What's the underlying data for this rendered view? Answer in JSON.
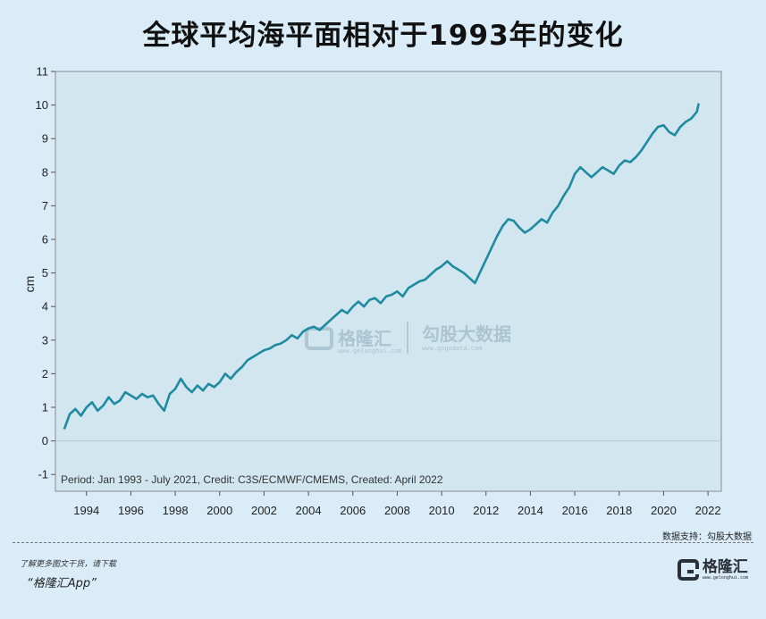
{
  "title": "全球平均海平面相对于1993年的变化",
  "data_support": "数据支持：勾股大数据",
  "footer": {
    "line1": "了解更多图文干货，请下载",
    "line2": "“格隆汇App”"
  },
  "brand": {
    "name": "格隆汇",
    "url": "www.gelonghui.com"
  },
  "watermark": {
    "left_name": "格隆汇",
    "left_url": "www.gelonghui.com",
    "right_name": "勾股大数据",
    "right_url": "www.gogudata.com"
  },
  "colors": {
    "background": "#d9ecf8",
    "plot_bg": "#d2e6f0",
    "line": "#1f8aa0"
  },
  "chart_data": {
    "type": "line",
    "title": "全球平均海平面相对于1993年的变化",
    "xlabel": "",
    "ylabel": "cm",
    "xlim": [
      1992.6,
      2022.6
    ],
    "ylim": [
      -1.5,
      11
    ],
    "x_ticks": [
      1994,
      1996,
      1998,
      2000,
      2002,
      2004,
      2006,
      2008,
      2010,
      2012,
      2014,
      2016,
      2018,
      2020,
      2022
    ],
    "y_ticks": [
      -1,
      0,
      1,
      2,
      3,
      4,
      5,
      6,
      7,
      8,
      9,
      10,
      11
    ],
    "annotation": "Period: Jan 1993 - July 2021, Credit: C3S/ECMWF/CMEMS, Created: April 2022",
    "grid": false,
    "series": [
      {
        "x": [
          1993.0,
          1993.25,
          1993.5,
          1993.75,
          1994.0,
          1994.25,
          1994.5,
          1994.75,
          1995.0,
          1995.25,
          1995.5,
          1995.75,
          1996.0,
          1996.25,
          1996.5,
          1996.75,
          1997.0,
          1997.25,
          1997.5,
          1997.75,
          1998.0,
          1998.25,
          1998.5,
          1998.75,
          1999.0,
          1999.25,
          1999.5,
          1999.75,
          2000.0,
          2000.25,
          2000.5,
          2000.75,
          2001.0,
          2001.25,
          2001.5,
          2001.75,
          2002.0,
          2002.25,
          2002.5,
          2002.75,
          2003.0,
          2003.25,
          2003.5,
          2003.75,
          2004.0,
          2004.25,
          2004.5,
          2004.75,
          2005.0,
          2005.25,
          2005.5,
          2005.75,
          2006.0,
          2006.25,
          2006.5,
          2006.75,
          2007.0,
          2007.25,
          2007.5,
          2007.75,
          2008.0,
          2008.25,
          2008.5,
          2008.75,
          2009.0,
          2009.25,
          2009.5,
          2009.75,
          2010.0,
          2010.25,
          2010.5,
          2010.75,
          2011.0,
          2011.25,
          2011.5,
          2011.75,
          2012.0,
          2012.25,
          2012.5,
          2012.75,
          2013.0,
          2013.25,
          2013.5,
          2013.75,
          2014.0,
          2014.25,
          2014.5,
          2014.75,
          2015.0,
          2015.25,
          2015.5,
          2015.75,
          2016.0,
          2016.25,
          2016.5,
          2016.75,
          2017.0,
          2017.25,
          2017.5,
          2017.75,
          2018.0,
          2018.25,
          2018.5,
          2018.75,
          2019.0,
          2019.25,
          2019.5,
          2019.75,
          2020.0,
          2020.25,
          2020.5,
          2020.75,
          2021.0,
          2021.25,
          2021.5,
          2021.58
        ],
        "values": [
          0.35,
          0.8,
          0.95,
          0.75,
          1.0,
          1.15,
          0.9,
          1.05,
          1.3,
          1.1,
          1.2,
          1.45,
          1.35,
          1.25,
          1.4,
          1.3,
          1.35,
          1.1,
          0.9,
          1.4,
          1.55,
          1.85,
          1.6,
          1.45,
          1.65,
          1.5,
          1.7,
          1.6,
          1.75,
          2.0,
          1.85,
          2.05,
          2.2,
          2.4,
          2.5,
          2.6,
          2.7,
          2.75,
          2.85,
          2.9,
          3.0,
          3.15,
          3.05,
          3.25,
          3.35,
          3.4,
          3.3,
          3.45,
          3.6,
          3.75,
          3.9,
          3.8,
          4.0,
          4.15,
          4.0,
          4.2,
          4.25,
          4.1,
          4.3,
          4.35,
          4.45,
          4.3,
          4.55,
          4.65,
          4.75,
          4.8,
          4.95,
          5.1,
          5.2,
          5.35,
          5.2,
          5.1,
          5.0,
          4.85,
          4.7,
          5.05,
          5.4,
          5.75,
          6.1,
          6.4,
          6.6,
          6.55,
          6.35,
          6.2,
          6.3,
          6.45,
          6.6,
          6.5,
          6.8,
          7.0,
          7.3,
          7.55,
          7.95,
          8.15,
          8.0,
          7.85,
          8.0,
          8.15,
          8.05,
          7.95,
          8.2,
          8.35,
          8.3,
          8.45,
          8.65,
          8.9,
          9.15,
          9.35,
          9.4,
          9.2,
          9.1,
          9.35,
          9.5,
          9.6,
          9.8,
          10.05
        ]
      }
    ]
  }
}
